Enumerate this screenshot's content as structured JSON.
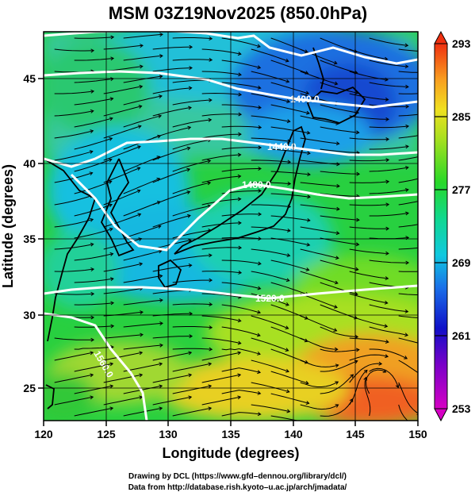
{
  "title": "MSM 03Z19Nov2025 (850.0hPa)",
  "x_axis": {
    "label": "Longitude (degrees)",
    "ticks": [
      "120",
      "125",
      "130",
      "135",
      "140",
      "145",
      "150"
    ],
    "range": [
      120,
      150
    ]
  },
  "y_axis": {
    "label": "Latitude  (degrees)",
    "ticks": [
      "25",
      "30",
      "35",
      "40",
      "45"
    ],
    "range": [
      22.4,
      47.6
    ]
  },
  "colorbar": {
    "ticks": [
      "293",
      "285",
      "277",
      "269",
      "261",
      "253"
    ],
    "range": [
      253,
      293
    ]
  },
  "contour_labels": [
    "1400.0",
    "1440.0",
    "1480.0",
    "1520.0",
    "1560.0"
  ],
  "credits": {
    "line1": "Drawing by DCL (https://www.gfd–dennou.org/library/dcl/)",
    "line2": "Data from http://database.rish.kyoto–u.ac.jp/arch/jmadata/"
  },
  "colors": {
    "contour": "#ffffff",
    "streamline": "#000000",
    "grid": "#000000"
  }
}
